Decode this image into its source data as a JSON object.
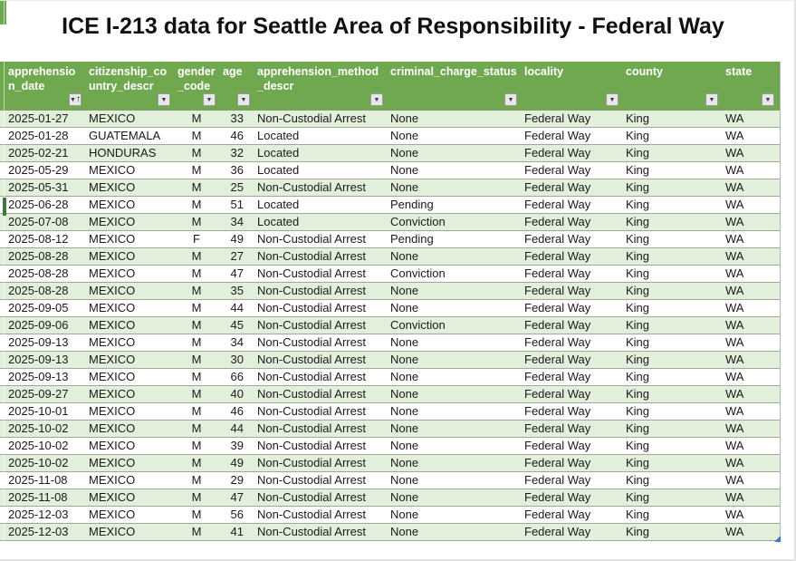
{
  "title": "ICE I-213 data for Seattle Area of Responsibility - Federal Way",
  "colors": {
    "header_green": "#6FA84F",
    "band_green": "#E2EFDA",
    "row_border": "#A0A89B",
    "selection_green": "#3E7A3E",
    "handle_blue": "#4472C4",
    "header_text": "#FFFFFF",
    "body_text": "#1A1A1A"
  },
  "icons": {
    "filter_arrow": "▼",
    "sort_ascending_arrow": "↑"
  },
  "table": {
    "columns": [
      {
        "key": "apprehension_date",
        "label": "apprehension_date",
        "sorted": "ascending"
      },
      {
        "key": "citizenship_country_descr",
        "label": "citizenship_country_descr",
        "sorted": null
      },
      {
        "key": "gender_code",
        "label": "gender_code",
        "sorted": null
      },
      {
        "key": "age",
        "label": "age",
        "sorted": null
      },
      {
        "key": "apprehension_method_descr",
        "label": "apprehension_method_descr",
        "sorted": null
      },
      {
        "key": "criminal_charge_status",
        "label": "criminal_charge_status",
        "sorted": null
      },
      {
        "key": "locality",
        "label": "locality",
        "sorted": null
      },
      {
        "key": "county",
        "label": "county",
        "sorted": null
      },
      {
        "key": "state",
        "label": "state",
        "sorted": null
      }
    ],
    "rows": [
      [
        "2025-01-27",
        "MEXICO",
        "M",
        33,
        "Non-Custodial Arrest",
        "None",
        "Federal Way",
        "King",
        "WA"
      ],
      [
        "2025-01-28",
        "GUATEMALA",
        "M",
        46,
        "Located",
        "None",
        "Federal Way",
        "King",
        "WA"
      ],
      [
        "2025-02-21",
        "HONDURAS",
        "M",
        32,
        "Located",
        "None",
        "Federal Way",
        "King",
        "WA"
      ],
      [
        "2025-05-29",
        "MEXICO",
        "M",
        36,
        "Located",
        "None",
        "Federal Way",
        "King",
        "WA"
      ],
      [
        "2025-05-31",
        "MEXICO",
        "M",
        25,
        "Non-Custodial Arrest",
        "None",
        "Federal Way",
        "King",
        "WA"
      ],
      [
        "2025-06-28",
        "MEXICO",
        "M",
        51,
        "Located",
        "Pending",
        "Federal Way",
        "King",
        "WA"
      ],
      [
        "2025-07-08",
        "MEXICO",
        "M",
        34,
        "Located",
        "Conviction",
        "Federal Way",
        "King",
        "WA"
      ],
      [
        "2025-08-12",
        "MEXICO",
        "F",
        49,
        "Non-Custodial Arrest",
        "Pending",
        "Federal Way",
        "King",
        "WA"
      ],
      [
        "2025-08-28",
        "MEXICO",
        "M",
        27,
        "Non-Custodial Arrest",
        "None",
        "Federal Way",
        "King",
        "WA"
      ],
      [
        "2025-08-28",
        "MEXICO",
        "M",
        47,
        "Non-Custodial Arrest",
        "Conviction",
        "Federal Way",
        "King",
        "WA"
      ],
      [
        "2025-08-28",
        "MEXICO",
        "M",
        35,
        "Non-Custodial Arrest",
        "None",
        "Federal Way",
        "King",
        "WA"
      ],
      [
        "2025-09-05",
        "MEXICO",
        "M",
        44,
        "Non-Custodial Arrest",
        "None",
        "Federal Way",
        "King",
        "WA"
      ],
      [
        "2025-09-06",
        "MEXICO",
        "M",
        45,
        "Non-Custodial Arrest",
        "Conviction",
        "Federal Way",
        "King",
        "WA"
      ],
      [
        "2025-09-13",
        "MEXICO",
        "M",
        34,
        "Non-Custodial Arrest",
        "None",
        "Federal Way",
        "King",
        "WA"
      ],
      [
        "2025-09-13",
        "MEXICO",
        "M",
        30,
        "Non-Custodial Arrest",
        "None",
        "Federal Way",
        "King",
        "WA"
      ],
      [
        "2025-09-13",
        "MEXICO",
        "M",
        66,
        "Non-Custodial Arrest",
        "None",
        "Federal Way",
        "King",
        "WA"
      ],
      [
        "2025-09-27",
        "MEXICO",
        "M",
        40,
        "Non-Custodial Arrest",
        "None",
        "Federal Way",
        "King",
        "WA"
      ],
      [
        "2025-10-01",
        "MEXICO",
        "M",
        46,
        "Non-Custodial Arrest",
        "None",
        "Federal Way",
        "King",
        "WA"
      ],
      [
        "2025-10-02",
        "MEXICO",
        "M",
        44,
        "Non-Custodial Arrest",
        "None",
        "Federal Way",
        "King",
        "WA"
      ],
      [
        "2025-10-02",
        "MEXICO",
        "M",
        39,
        "Non-Custodial Arrest",
        "None",
        "Federal Way",
        "King",
        "WA"
      ],
      [
        "2025-10-02",
        "MEXICO",
        "M",
        49,
        "Non-Custodial Arrest",
        "None",
        "Federal Way",
        "King",
        "WA"
      ],
      [
        "2025-11-08",
        "MEXICO",
        "M",
        29,
        "Non-Custodial Arrest",
        "None",
        "Federal Way",
        "King",
        "WA"
      ],
      [
        "2025-11-08",
        "MEXICO",
        "M",
        47,
        "Non-Custodial Arrest",
        "None",
        "Federal Way",
        "King",
        "WA"
      ],
      [
        "2025-12-03",
        "MEXICO",
        "M",
        56,
        "Non-Custodial Arrest",
        "None",
        "Federal Way",
        "King",
        "WA"
      ],
      [
        "2025-12-03",
        "MEXICO",
        "M",
        41,
        "Non-Custodial Arrest",
        "None",
        "Federal Way",
        "King",
        "WA"
      ]
    ],
    "selected_row_index": 5
  }
}
